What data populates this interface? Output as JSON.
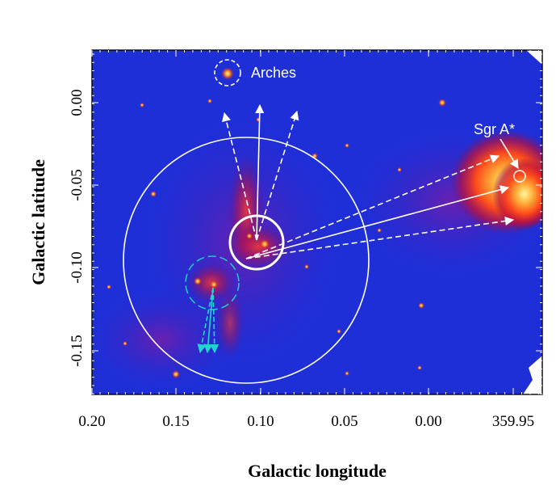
{
  "figure": {
    "xlabel": "Galactic longitude",
    "ylabel": "Galactic latitude",
    "x_ticks": [
      "0.20",
      "0.15",
      "0.10",
      "0.05",
      "0.00",
      "359.95"
    ],
    "y_ticks": [
      "0.00",
      "-0.05",
      "-0.10",
      "-0.15"
    ],
    "annotations": {
      "arches": "Arches",
      "sgr_a": "Sgr A*"
    },
    "colors": {
      "background_map": "#1f2fd8",
      "emission_hot": "#ffd84a",
      "circle_white": "#ffffff",
      "circle_cyan": "#22c7c7"
    }
  }
}
